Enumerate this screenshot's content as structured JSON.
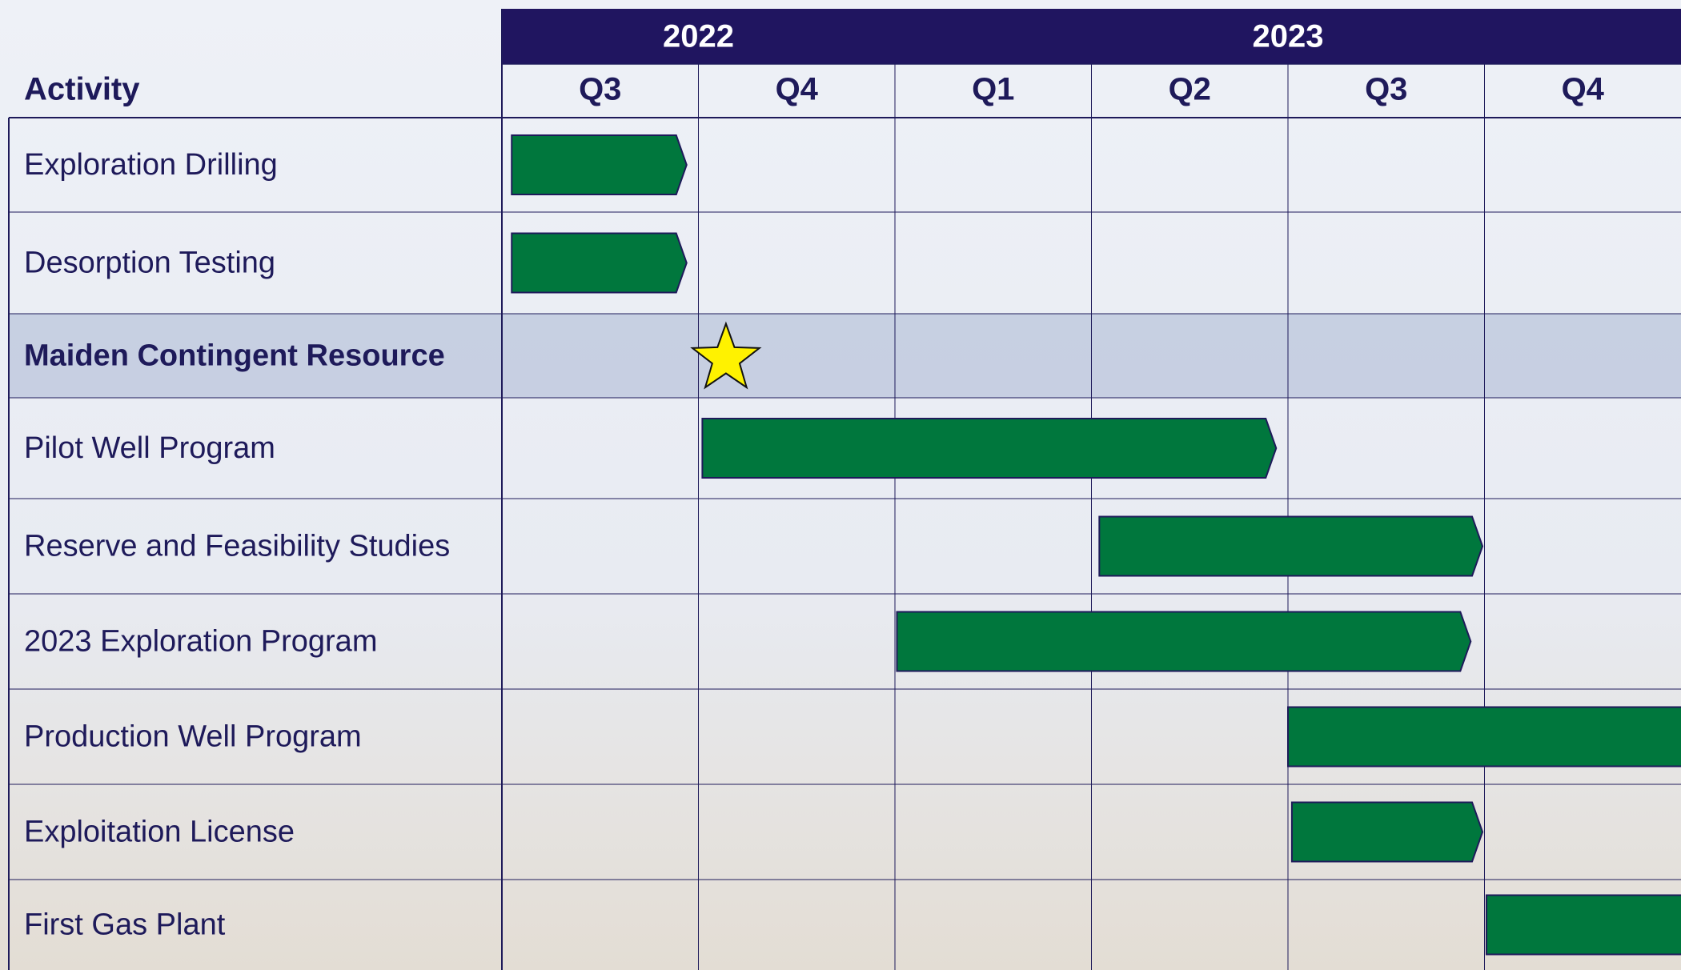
{
  "chart_data": {
    "type": "gantt",
    "column_header": "Activity",
    "years": [
      {
        "label": "2022",
        "start": 0,
        "end": 2
      },
      {
        "label": "2023",
        "start": 2,
        "end": 6
      }
    ],
    "categories": [
      "Q3",
      "Q4",
      "Q1",
      "Q2",
      "Q3",
      "Q4"
    ],
    "xlim": [
      0,
      6
    ],
    "color": "#00773d",
    "milestone_color": "#fff200",
    "tasks": [
      {
        "name": "Exploration Drilling",
        "start": 0.05,
        "end": 0.94
      },
      {
        "name": "Desorption Testing",
        "start": 0.05,
        "end": 0.94
      },
      {
        "name": "Maiden Contingent Resource",
        "milestone": 1.14
      },
      {
        "name": "Pilot Well Program",
        "start": 1.02,
        "end": 3.94
      },
      {
        "name": "Reserve and Feasibility Studies",
        "start": 3.04,
        "end": 4.99
      },
      {
        "name": "2023 Exploration Program",
        "start": 2.01,
        "end": 4.93
      },
      {
        "name": "Production Well Program",
        "start": 4.0,
        "end": 6.5
      },
      {
        "name": "Exploitation License",
        "start": 4.02,
        "end": 4.99
      },
      {
        "name": "First Gas Plant",
        "start": 5.01,
        "end": 6.5
      }
    ]
  }
}
